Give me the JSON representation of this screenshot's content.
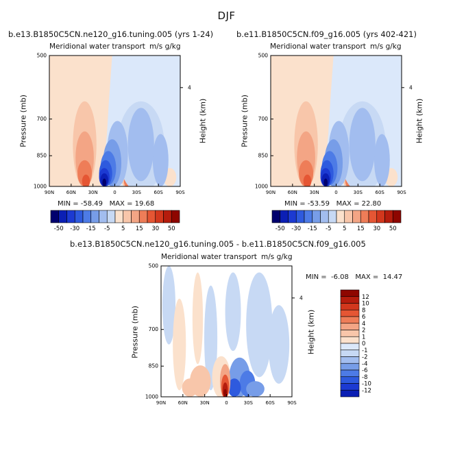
{
  "suptitle": "DJF",
  "colors": {
    "neg": [
      "#00006e",
      "#0b1fb4",
      "#1c3ad2",
      "#2e5ade",
      "#4d7be6",
      "#779de8",
      "#a2bdef",
      "#c7d9f4",
      "#dbe8fa"
    ],
    "neg_labels": [
      "#07096f",
      "#0a21ad",
      "#1736c7",
      "#3359d9",
      "#5a82e2",
      "#84a6ec",
      "#aac5f2",
      "#d0e1f8"
    ],
    "pos": [
      "#fbe1cc",
      "#f8c6aa",
      "#f3a585",
      "#ee7d58",
      "#e55634",
      "#d2371d",
      "#b51c0d",
      "#8e0600"
    ]
  },
  "panels": [
    {
      "title": "b.e13.B1850C5CN.ne120_g16.tuning.005 (yrs 1-24)",
      "variable": "Meridional water transport",
      "units": "m/s g/kg",
      "min_text": "MIN = -58.49",
      "max_text": "MAX = 19.68"
    },
    {
      "title": "b.e11.B1850C5CN.f09_g16.005 (yrs 402-421)",
      "variable": "Meridional water transport",
      "units": "m/s g/kg",
      "min_text": "MIN = -53.59",
      "max_text": "MAX = 22.80"
    },
    {
      "title": "b.e13.B1850C5CN.ne120_g16.tuning.005 - b.e11.B1850C5CN.f09_g16.005",
      "variable": "Meridional water transport",
      "units": "m/s g/kg",
      "min_text": "MIN =  -6.08",
      "max_text": "MAX =  14.47"
    }
  ],
  "axes": {
    "ylabel": "Pressure (mb)",
    "y2label": "Height (km)",
    "yticks": [
      "500",
      "700",
      "850",
      "1000"
    ],
    "y2ticks": [
      "4"
    ],
    "xticks": [
      "90N",
      "60N",
      "30N",
      "0",
      "30S",
      "60S",
      "90S"
    ]
  },
  "colorbar_h": {
    "labels": [
      "-50",
      "-30",
      "-15",
      "-5",
      "5",
      "15",
      "30",
      "50"
    ]
  },
  "colorbar_v": {
    "labels": [
      "12",
      "10",
      "8",
      "6",
      "4",
      "2",
      "1",
      "0",
      "-1",
      "-2",
      "-4",
      "-6",
      "-8",
      "-10",
      "-12"
    ]
  },
  "chart_data": [
    {
      "type": "heatmap",
      "title": "b.e13.B1850C5CN.ne120_g16.tuning.005 (yrs 1-24)",
      "subtitle": "Meridional water transport m/s g/kg",
      "xlabel": "",
      "ylabel": "Pressure (mb)",
      "y2label": "Height (km)",
      "xlim": [
        "90N",
        "90S"
      ],
      "ylim": [
        1000,
        500
      ],
      "contour_levels": [
        -50,
        -45,
        -40,
        -35,
        -30,
        -25,
        -20,
        -15,
        -10,
        -5,
        0,
        5,
        10,
        15,
        20,
        25,
        30,
        35,
        40,
        45,
        50
      ],
      "min": -58.49,
      "max": 19.68
    },
    {
      "type": "heatmap",
      "title": "b.e11.B1850C5CN.f09_g16.005 (yrs 402-421)",
      "subtitle": "Meridional water transport m/s g/kg",
      "xlabel": "",
      "ylabel": "Pressure (mb)",
      "y2label": "Height (km)",
      "xlim": [
        "90N",
        "90S"
      ],
      "ylim": [
        1000,
        500
      ],
      "contour_levels": [
        -50,
        -45,
        -40,
        -35,
        -30,
        -25,
        -20,
        -15,
        -10,
        -5,
        0,
        5,
        10,
        15,
        20,
        25,
        30,
        35,
        40,
        45,
        50
      ],
      "min": -53.59,
      "max": 22.8
    },
    {
      "type": "heatmap",
      "title": "b.e13.B1850C5CN.ne120_g16.tuning.005 - b.e11.B1850C5CN.f09_g16.005",
      "subtitle": "Meridional water transport m/s g/kg",
      "xlabel": "",
      "ylabel": "Pressure (mb)",
      "y2label": "Height (km)",
      "xlim": [
        "90N",
        "90S"
      ],
      "ylim": [
        1000,
        500
      ],
      "contour_levels": [
        -12,
        -10,
        -8,
        -6,
        -4,
        -2,
        -1,
        0,
        1,
        2,
        4,
        6,
        8,
        10,
        12
      ],
      "min": -6.08,
      "max": 14.47
    }
  ]
}
